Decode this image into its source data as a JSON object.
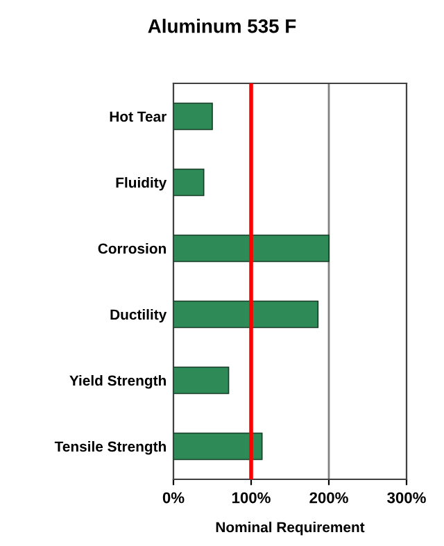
{
  "chart_data": {
    "type": "bar",
    "orientation": "horizontal",
    "title": "Aluminum 535 F",
    "xlabel": "Nominal Requirement",
    "categories": [
      "Hot Tear",
      "Fluidity",
      "Corrosion",
      "Ductility",
      "Yield Strength",
      "Tensile Strength"
    ],
    "values": [
      50,
      39,
      200,
      186,
      71,
      114
    ],
    "color": "#2e8b57",
    "xlim": [
      0,
      300
    ],
    "xticks": [
      {
        "value": 0,
        "label": "0%"
      },
      {
        "value": 100,
        "label": "100%"
      },
      {
        "value": 200,
        "label": "200%"
      },
      {
        "value": 300,
        "label": "300%"
      }
    ],
    "ref_lines": [
      {
        "axis": "x",
        "value": 200,
        "color": "#808080"
      },
      {
        "axis": "x",
        "value": 100,
        "color": "#ff0000"
      }
    ]
  }
}
